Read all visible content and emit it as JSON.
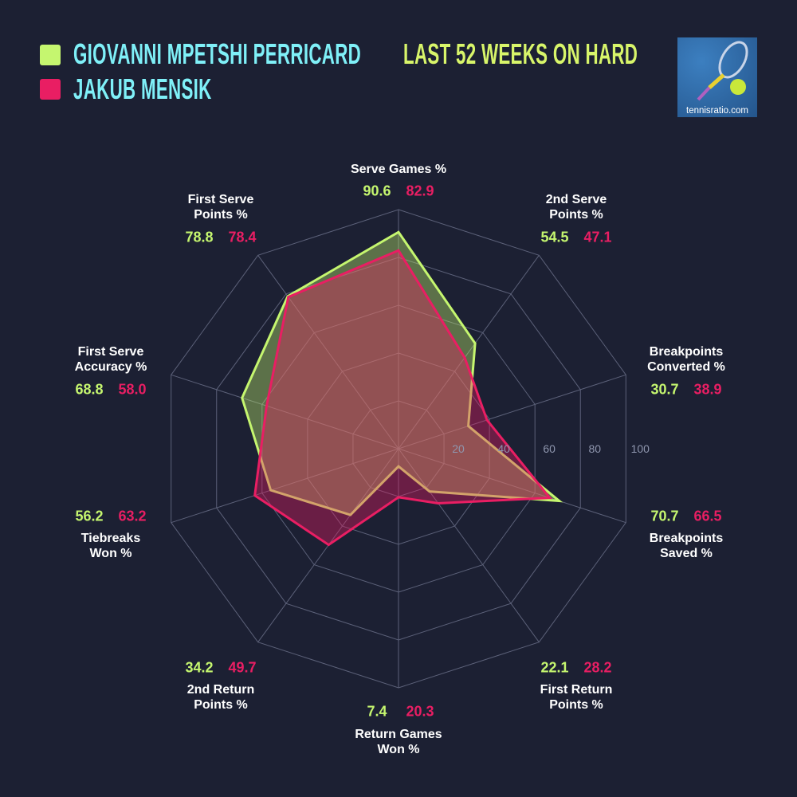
{
  "header": {
    "players": [
      {
        "name": "GIOVANNI MPETSHI PERRICARD",
        "color": "#c5f66f"
      },
      {
        "name": "JAKUB MENSIK",
        "color": "#e91e63"
      }
    ],
    "subtitle": "LAST 52 WEEKS ON HARD",
    "logo_text": "tennisratio.com"
  },
  "chart_data": {
    "type": "radar",
    "title": "LAST 52 WEEKS ON HARD",
    "range": [
      0,
      100
    ],
    "ticks": [
      "20",
      "40",
      "60",
      "80",
      "100"
    ],
    "tick_values": [
      20,
      40,
      60,
      80,
      100
    ],
    "axes": [
      {
        "label": [
          "Serve Games %"
        ],
        "values": [
          "90.6",
          "82.9"
        ]
      },
      {
        "label": [
          "2nd Serve",
          "Points %"
        ],
        "values": [
          "54.5",
          "47.1"
        ]
      },
      {
        "label": [
          "Breakpoints",
          "Converted %"
        ],
        "values": [
          "30.7",
          "38.9"
        ]
      },
      {
        "label": [
          "Breakpoints",
          "Saved %"
        ],
        "values": [
          "70.7",
          "66.5"
        ]
      },
      {
        "label": [
          "First Return",
          "Points %"
        ],
        "values": [
          "22.1",
          "28.2"
        ]
      },
      {
        "label": [
          "Return Games",
          "Won %"
        ],
        "values": [
          "7.4",
          "20.3"
        ]
      },
      {
        "label": [
          "2nd Return",
          "Points %"
        ],
        "values": [
          "34.2",
          "49.7"
        ]
      },
      {
        "label": [
          "Tiebreaks",
          "Won %"
        ],
        "values": [
          "56.2",
          "63.2"
        ]
      },
      {
        "label": [
          "First Serve",
          "Accuracy %"
        ],
        "values": [
          "68.8",
          "58.0"
        ]
      },
      {
        "label": [
          "First Serve",
          "Points %"
        ],
        "values": [
          "78.8",
          "78.4"
        ]
      }
    ],
    "series": [
      {
        "name": "GIOVANNI MPETSHI PERRICARD",
        "color": "#c5f66f",
        "values": [
          90.6,
          54.5,
          30.7,
          70.7,
          22.1,
          7.4,
          34.2,
          56.2,
          68.8,
          78.8
        ]
      },
      {
        "name": "JAKUB MENSIK",
        "color": "#e91e63",
        "values": [
          82.9,
          47.1,
          38.9,
          66.5,
          28.2,
          20.3,
          49.7,
          63.2,
          58.0,
          78.4
        ]
      }
    ]
  }
}
